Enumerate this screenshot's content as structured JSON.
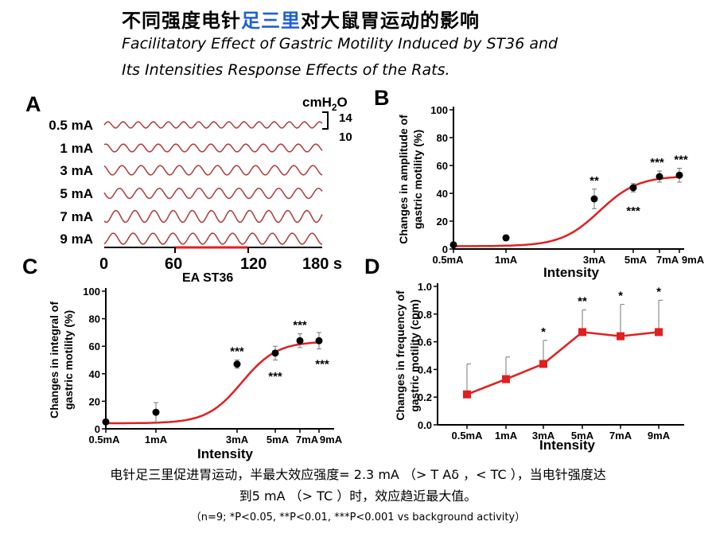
{
  "header": {
    "title_zh_prefix": "不同强度电针",
    "title_zh_highlight": "足三里",
    "title_zh_suffix": "对大鼠胃运动的影响",
    "title_en_line1": "Facilitatory Effect of Gastric Motility Induced by ST36 and",
    "title_en_line2": "Its Intensities Response Effects of the Rats."
  },
  "panel_a": {
    "letter": "A",
    "unit": "cmH",
    "unit_sub": "2",
    "unit_tail": "O",
    "scale_top": "14",
    "scale_bottom": "10",
    "traces": [
      "0.5 mA",
      "1 mA",
      "3 mA",
      "5 mA",
      "7 mA",
      "9 mA"
    ],
    "time_ticks": [
      "0",
      "60",
      "120",
      "180 s"
    ],
    "stim_label": "EA ST36",
    "colors": {
      "trace": "#b03a3a",
      "stim_bar": "#e02020"
    }
  },
  "panels": {
    "B": {
      "letter": "B"
    },
    "C": {
      "letter": "C"
    },
    "D": {
      "letter": "D"
    }
  },
  "chart_data": [
    {
      "id": "B",
      "type": "scatter",
      "ylabel": "Changes in amplitude of gastric motility (%)",
      "xlabel": "Intensity",
      "categories": [
        "0.5mA",
        "1mA",
        "3mA",
        "5mA",
        "7mA",
        "9mA"
      ],
      "values": [
        3,
        8,
        36,
        44,
        52,
        53
      ],
      "errors": [
        1,
        2,
        7,
        3,
        4,
        5
      ],
      "significance": [
        "",
        "",
        "**",
        "***",
        "***",
        "***"
      ],
      "ylim": [
        0,
        100
      ],
      "yticks": [
        0,
        20,
        40,
        60,
        80,
        100
      ],
      "fit": "sigmoid",
      "colors": {
        "fit": "#e02020",
        "point": "#000000"
      }
    },
    {
      "id": "C",
      "type": "scatter",
      "ylabel": "Changes in integral of gastric motility (%)",
      "xlabel": "Intensity",
      "categories": [
        "0.5mA",
        "1mA",
        "3mA",
        "5mA",
        "7mA",
        "9mA"
      ],
      "values": [
        5,
        12,
        47,
        55,
        64,
        64
      ],
      "errors": [
        1,
        7,
        3,
        5,
        5,
        6
      ],
      "significance": [
        "",
        "",
        "***",
        "***",
        "***",
        "***"
      ],
      "ylim": [
        0,
        100
      ],
      "yticks": [
        0,
        20,
        40,
        60,
        80,
        100
      ],
      "fit": "sigmoid",
      "colors": {
        "fit": "#e02020",
        "point": "#000000"
      }
    },
    {
      "id": "D",
      "type": "line",
      "ylabel": "Changes in frequency of gastric motility (cpm)",
      "xlabel": "Intensity",
      "categories": [
        "0.5mA",
        "1mA",
        "3mA",
        "5mA",
        "7mA",
        "9mA"
      ],
      "values": [
        0.22,
        0.33,
        0.44,
        0.67,
        0.64,
        0.67
      ],
      "errors": [
        0.22,
        0.16,
        0.17,
        0.16,
        0.23,
        0.23
      ],
      "significance": [
        "",
        "",
        "*",
        "**",
        "*",
        "*"
      ],
      "ylim": [
        0,
        1.0
      ],
      "yticks": [
        "0.0",
        "0.2",
        "0.4",
        "0.6",
        "0.8",
        "1.0"
      ],
      "colors": {
        "line": "#e02020",
        "marker": "#e02020"
      }
    }
  ],
  "conclusion": {
    "line1": "电针足三里促进胃运动，半最大效应强度= 2.3 mA （> T Aδ ，< TC ），当电针强度达",
    "line2": "到5 mA （> TC ）时，效应趋近最大值。"
  },
  "footnote": "（n=9; *P<0.05, **P<0.01, ***P<0.001 vs background activity）"
}
